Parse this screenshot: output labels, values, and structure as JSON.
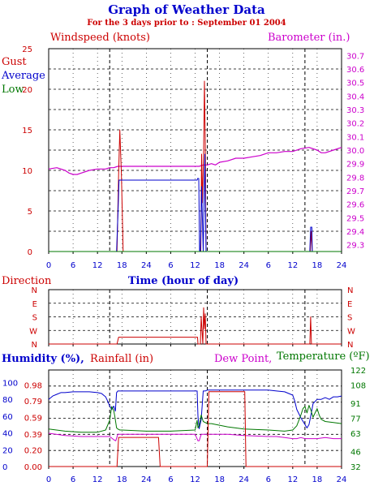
{
  "header": {
    "title": "Graph of Weather Data",
    "subtitle": "For the 3 days prior to : September 01 2004"
  },
  "colors": {
    "red": "#cc0000",
    "blue": "#0000cc",
    "green": "#007700",
    "magenta": "#cc00cc",
    "grid": "#000000"
  },
  "chart_data": [
    {
      "type": "line",
      "labels": {
        "windspeed": "Windspeed (knots)",
        "barometer": "Barometer (in.)",
        "gust": "Gust",
        "average": "Average",
        "low": "Low",
        "xlabel": "Time (hour of day)"
      },
      "xticks": [
        "0",
        "6",
        "12",
        "18",
        "24",
        "6",
        "12",
        "18",
        "24",
        "6",
        "12",
        "18",
        "24"
      ],
      "xlim": [
        0,
        72
      ],
      "day_boundaries": [
        15,
        39,
        63
      ],
      "ylim_left": [
        0,
        25
      ],
      "yticks_left": [
        "0",
        "5",
        "10",
        "15",
        "20",
        "25"
      ],
      "ylim_right": [
        29.25,
        30.75
      ],
      "yticks_right": [
        "29.3",
        "29.4",
        "29.5",
        "29.6",
        "29.7",
        "29.8",
        "29.9",
        "30.0",
        "30.1",
        "30.2",
        "30.3",
        "30.4",
        "30.5",
        "30.6",
        "30.7"
      ],
      "series": [
        {
          "name": "Barometer",
          "axis": "right",
          "x": [
            0,
            2,
            4,
            5,
            6,
            7,
            8,
            10,
            12,
            13,
            14,
            15,
            16,
            17,
            18,
            20,
            24,
            30,
            36,
            37,
            38,
            39,
            40,
            41,
            42,
            44,
            46,
            48,
            50,
            52,
            54,
            56,
            58,
            60,
            62,
            64,
            66,
            67,
            68,
            70,
            72
          ],
          "values": [
            29.86,
            29.87,
            29.85,
            29.83,
            29.82,
            29.82,
            29.83,
            29.85,
            29.86,
            29.86,
            29.86,
            29.87,
            29.87,
            29.88,
            29.88,
            29.88,
            29.88,
            29.88,
            29.88,
            29.88,
            29.89,
            29.89,
            29.9,
            29.89,
            29.91,
            29.92,
            29.94,
            29.94,
            29.95,
            29.96,
            29.98,
            29.98,
            29.99,
            29.99,
            30.01,
            30.02,
            30.0,
            29.98,
            29.98,
            30.0,
            30.02
          ]
        },
        {
          "name": "Gust",
          "axis": "left",
          "x": [
            0,
            16.8,
            17.2,
            17.5,
            17.9,
            18.3,
            37.4,
            37.6,
            37.8,
            38.1,
            38.3,
            38.5,
            38.7,
            39.0,
            64.3,
            64.5,
            64.8,
            72
          ],
          "values": [
            0,
            0,
            9.5,
            15,
            9.3,
            0,
            0,
            12.0,
            6.0,
            12.3,
            21.0,
            13.5,
            0,
            0,
            0,
            2.5,
            0,
            0
          ]
        },
        {
          "name": "Average",
          "axis": "left",
          "x": [
            0,
            16.7,
            17.1,
            17.3,
            18.0,
            18.2,
            36.5,
            36.6,
            36.9,
            37.1,
            37.3,
            37.6,
            38.0,
            38.4,
            38.7,
            39.0,
            64.2,
            64.4,
            64.7,
            64.8,
            72
          ],
          "values": [
            0,
            0,
            5.5,
            8.8,
            8.8,
            8.8,
            8.8,
            9.0,
            9.0,
            0,
            0,
            8.0,
            0,
            12.0,
            0,
            0,
            0,
            3.0,
            3.0,
            0,
            0
          ]
        },
        {
          "name": "Low",
          "axis": "left",
          "x": [
            0,
            72
          ],
          "values": [
            0,
            0
          ]
        }
      ]
    },
    {
      "type": "line",
      "labels": {
        "direction": "Direction"
      },
      "categories": [
        "N",
        "W",
        "S",
        "E",
        "N"
      ],
      "xlim": [
        0,
        72
      ],
      "series": [
        {
          "name": "Direction",
          "x": [
            0,
            16.8,
            17.2,
            36.6,
            36.7,
            37.3,
            37.5,
            37.9,
            38.1,
            38.3,
            38.5,
            38.7,
            39.0,
            64.2,
            64.4,
            64.6,
            64.8,
            72
          ],
          "values": [
            0,
            0,
            45,
            45,
            0,
            0,
            180,
            0,
            240,
            100,
            200,
            0,
            0,
            0,
            180,
            0,
            0,
            0
          ]
        }
      ]
    },
    {
      "type": "line",
      "labels": {
        "humidity": "Humidity (%),",
        "rainfall": "Rainfall (in)",
        "dewpoint": "Dew Point,",
        "temperature": "Temperature (ºF)"
      },
      "xticks": [
        "0",
        "6",
        "12",
        "18",
        "24",
        "6",
        "12",
        "18",
        "24",
        "6",
        "12",
        "18",
        "24"
      ],
      "xlim": [
        0,
        72
      ],
      "ylim_humidity": [
        0,
        115
      ],
      "yticks_humidity": [
        "0",
        "20",
        "40",
        "60",
        "80",
        "100"
      ],
      "ylim_rain": [
        0,
        1.16
      ],
      "yticks_rain": [
        "0.00",
        "0.20",
        "0.39",
        "0.59",
        "0.79",
        "0.98"
      ],
      "ylim_temp": [
        32,
        122
      ],
      "yticks_temp": [
        "32",
        "46",
        "63",
        "77",
        "91",
        "108",
        "122"
      ],
      "series": [
        {
          "name": "Humidity",
          "axis": "humidity",
          "x": [
            0,
            1,
            2,
            3,
            4,
            6,
            8,
            10,
            12,
            13,
            14,
            14.5,
            15,
            15.5,
            16,
            16.4,
            16.7,
            17,
            17.3,
            18,
            24,
            30,
            36,
            36.5,
            36.7,
            37,
            37.5,
            38,
            38.5,
            39,
            40,
            42,
            48,
            54,
            56,
            58,
            60,
            60.5,
            61,
            62,
            63,
            63.5,
            64,
            64.5,
            65,
            66,
            67,
            68,
            69,
            70,
            71,
            72
          ],
          "values": [
            80,
            84,
            86,
            88,
            88,
            89,
            89,
            89,
            88,
            87,
            83,
            78,
            72,
            68,
            72,
            66,
            88,
            90,
            90,
            90,
            90,
            90,
            90,
            90,
            60,
            45,
            56,
            90,
            90,
            91,
            91,
            91,
            91,
            91,
            90,
            89,
            85,
            78,
            68,
            58,
            50,
            46,
            50,
            62,
            75,
            80,
            80,
            82,
            80,
            83,
            83,
            84
          ]
        },
        {
          "name": "Temperature",
          "axis": "temp",
          "x": [
            0,
            4,
            8,
            12,
            14,
            15,
            15.5,
            16,
            16.3,
            16.7,
            17,
            17.5,
            18,
            24,
            30,
            36,
            36.5,
            36.7,
            37,
            37.5,
            38,
            39,
            40,
            44,
            48,
            54,
            58,
            60,
            61,
            61.5,
            62,
            62.5,
            63,
            63.5,
            64,
            64.5,
            65,
            66,
            66.5,
            67,
            68,
            70,
            72
          ],
          "values": [
            67,
            65,
            64,
            64,
            66,
            75,
            88,
            84,
            78,
            68,
            67,
            66,
            66,
            65,
            65,
            66,
            75,
            68,
            70,
            80,
            74,
            72,
            72,
            69,
            67,
            66,
            65,
            66,
            70,
            75,
            80,
            86,
            88,
            82,
            89,
            84,
            78,
            86,
            80,
            76,
            74,
            73,
            72
          ]
        },
        {
          "name": "Dew Point",
          "axis": "temp",
          "x": [
            0,
            4,
            8,
            12,
            14,
            15,
            16,
            16.5,
            17,
            18,
            24,
            30,
            36,
            36.7,
            37,
            37.5,
            38,
            40,
            44,
            48,
            54,
            56,
            58,
            60,
            61,
            62,
            63,
            64,
            65,
            66,
            68,
            70,
            72
          ],
          "values": [
            63,
            61,
            60,
            60,
            60,
            60,
            57,
            56,
            62,
            62,
            62,
            62,
            62,
            56,
            56,
            62,
            62,
            62,
            62,
            61,
            60,
            60,
            59,
            58,
            58,
            59,
            58,
            58,
            58,
            58,
            59,
            58,
            58
          ]
        },
        {
          "name": "Rainfall",
          "axis": "rain",
          "x": [
            0,
            16.8,
            17.2,
            27.0,
            27.4,
            39.0,
            39.4,
            48.2,
            48.5,
            72
          ],
          "values": [
            0,
            0,
            0.35,
            0.35,
            0,
            0,
            0.9,
            0.9,
            0,
            0
          ]
        }
      ]
    }
  ]
}
